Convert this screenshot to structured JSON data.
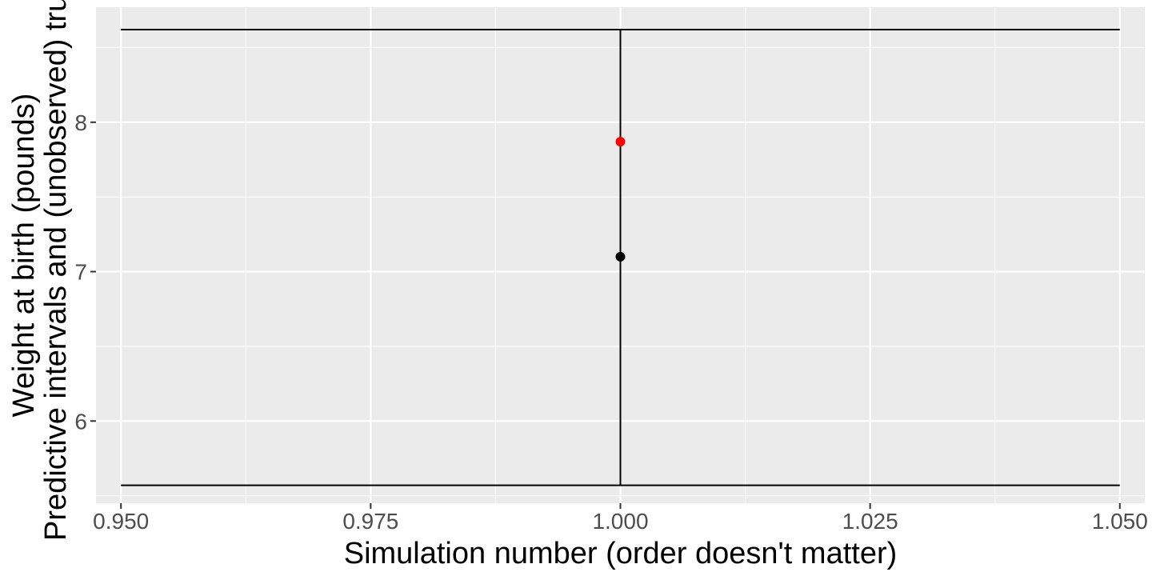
{
  "chart_data": {
    "type": "scatter",
    "xlabel": "Simulation number (order doesn't matter)",
    "ylabel_lines": [
      "Weight at birth (pounds)",
      "Predictive intervals and (unobserved) truth"
    ],
    "xlim": [
      0.9475,
      1.0525
    ],
    "ylim": [
      5.45,
      8.77
    ],
    "x_ticks": [
      0.95,
      0.975,
      1.0,
      1.025,
      1.05
    ],
    "x_tick_labels": [
      "0.950",
      "0.975",
      "1.000",
      "1.025",
      "1.050"
    ],
    "y_ticks": [
      6,
      7,
      8
    ],
    "y_tick_labels": [
      "6",
      "7",
      "8"
    ],
    "grid": true,
    "interval": {
      "x": 1.0,
      "lower": 5.57,
      "upper": 8.62,
      "cap_from": 0.95,
      "cap_to": 1.05
    },
    "points": [
      {
        "x": 1.0,
        "y": 7.1,
        "color": "#000000"
      },
      {
        "x": 1.0,
        "y": 7.87,
        "color": "#ff0000"
      }
    ],
    "panel_background": "#ebebeb",
    "grid_color": "#ffffff"
  }
}
